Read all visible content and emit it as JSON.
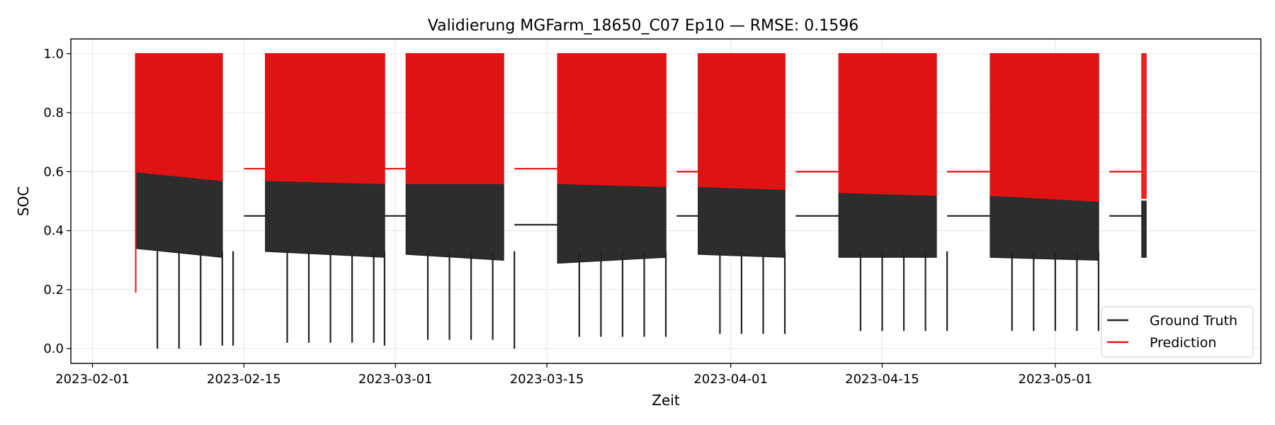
{
  "chart_data": {
    "type": "line",
    "title": "Validierung MGFarm_18650_C07 Ep10 — RMSE: 0.1596",
    "xlabel": "Zeit",
    "ylabel": "SOC",
    "xlim": [
      "2023-01-30",
      "2023-05-20"
    ],
    "ylim": [
      -0.05,
      1.05
    ],
    "x_ticks": [
      "2023-02-01",
      "2023-02-15",
      "2023-03-01",
      "2023-03-15",
      "2023-04-01",
      "2023-04-15",
      "2023-05-01"
    ],
    "y_ticks": [
      "0.0",
      "0.2",
      "0.4",
      "0.6",
      "0.8",
      "1.0"
    ],
    "grid": true,
    "legend_position": "bottom-right",
    "series": [
      {
        "name": "Ground Truth",
        "color": "#222222",
        "cycling_blocks": [
          {
            "start": "2023-02-05",
            "end": "2023-02-13",
            "top": 1.0,
            "floor_start": 0.34,
            "floor_end": 0.31
          },
          {
            "start": "2023-02-17",
            "end": "2023-02-28",
            "top": 1.0,
            "floor_start": 0.33,
            "floor_end": 0.31
          },
          {
            "start": "2023-03-02",
            "end": "2023-03-11",
            "top": 1.0,
            "floor_start": 0.32,
            "floor_end": 0.3
          },
          {
            "start": "2023-03-16",
            "end": "2023-03-26",
            "top": 1.0,
            "floor_start": 0.29,
            "floor_end": 0.31
          },
          {
            "start": "2023-03-29",
            "end": "2023-04-06",
            "top": 1.0,
            "floor_start": 0.32,
            "floor_end": 0.31
          },
          {
            "start": "2023-04-11",
            "end": "2023-04-20",
            "top": 1.0,
            "floor_start": 0.31,
            "floor_end": 0.31
          },
          {
            "start": "2023-04-25",
            "end": "2023-05-05",
            "top": 1.0,
            "floor_start": 0.31,
            "floor_end": 0.3
          },
          {
            "start": "2023-05-09",
            "end": "2023-05-09",
            "top": 0.5,
            "floor_start": 0.31,
            "floor_end": 0.31
          }
        ],
        "dips": [
          [
            "2023-02-07",
            0.0
          ],
          [
            "2023-02-09",
            0.0
          ],
          [
            "2023-02-11",
            0.01
          ],
          [
            "2023-02-13",
            0.01
          ],
          [
            "2023-02-14",
            0.01
          ],
          [
            "2023-02-19",
            0.02
          ],
          [
            "2023-02-21",
            0.02
          ],
          [
            "2023-02-23",
            0.02
          ],
          [
            "2023-02-25",
            0.02
          ],
          [
            "2023-02-27",
            0.02
          ],
          [
            "2023-02-28",
            0.01
          ],
          [
            "2023-03-04",
            0.03
          ],
          [
            "2023-03-06",
            0.03
          ],
          [
            "2023-03-08",
            0.03
          ],
          [
            "2023-03-10",
            0.03
          ],
          [
            "2023-03-12",
            0.0
          ],
          [
            "2023-03-18",
            0.04
          ],
          [
            "2023-03-20",
            0.04
          ],
          [
            "2023-03-22",
            0.04
          ],
          [
            "2023-03-24",
            0.04
          ],
          [
            "2023-03-26",
            0.04
          ],
          [
            "2023-03-31",
            0.05
          ],
          [
            "2023-04-02",
            0.05
          ],
          [
            "2023-04-04",
            0.05
          ],
          [
            "2023-04-06",
            0.05
          ],
          [
            "2023-04-13",
            0.06
          ],
          [
            "2023-04-15",
            0.06
          ],
          [
            "2023-04-17",
            0.06
          ],
          [
            "2023-04-19",
            0.06
          ],
          [
            "2023-04-21",
            0.06
          ],
          [
            "2023-04-27",
            0.06
          ],
          [
            "2023-04-29",
            0.06
          ],
          [
            "2023-05-01",
            0.06
          ],
          [
            "2023-05-03",
            0.06
          ],
          [
            "2023-05-05",
            0.06
          ]
        ],
        "rests": [
          [
            "2023-02-15",
            "2023-02-17",
            0.45
          ],
          [
            "2023-02-28",
            "2023-03-02",
            0.45
          ],
          [
            "2023-03-12",
            "2023-03-16",
            0.42
          ],
          [
            "2023-03-27",
            "2023-03-29",
            0.45
          ],
          [
            "2023-04-07",
            "2023-04-11",
            0.45
          ],
          [
            "2023-04-21",
            "2023-04-25",
            0.45
          ],
          [
            "2023-05-06",
            "2023-05-09",
            0.45
          ]
        ]
      },
      {
        "name": "Prediction",
        "color": "#ee1111",
        "cycling_blocks": [
          {
            "start": "2023-02-05",
            "end": "2023-02-13",
            "top": 1.0,
            "floor_start": 0.6,
            "floor_end": 0.57
          },
          {
            "start": "2023-02-17",
            "end": "2023-02-28",
            "top": 1.0,
            "floor_start": 0.57,
            "floor_end": 0.56
          },
          {
            "start": "2023-03-02",
            "end": "2023-03-11",
            "top": 1.0,
            "floor_start": 0.56,
            "floor_end": 0.56
          },
          {
            "start": "2023-03-16",
            "end": "2023-03-26",
            "top": 1.0,
            "floor_start": 0.56,
            "floor_end": 0.55
          },
          {
            "start": "2023-03-29",
            "end": "2023-04-06",
            "top": 1.0,
            "floor_start": 0.55,
            "floor_end": 0.54
          },
          {
            "start": "2023-04-11",
            "end": "2023-04-20",
            "top": 1.0,
            "floor_start": 0.53,
            "floor_end": 0.52
          },
          {
            "start": "2023-04-25",
            "end": "2023-05-05",
            "top": 1.0,
            "floor_start": 0.52,
            "floor_end": 0.5
          },
          {
            "start": "2023-05-09",
            "end": "2023-05-09",
            "top": 1.0,
            "floor_start": 0.51,
            "floor_end": 0.51
          }
        ],
        "initial_point": [
          "2023-02-05",
          0.19
        ],
        "rests": [
          [
            "2023-02-15",
            "2023-02-17",
            0.61
          ],
          [
            "2023-02-28",
            "2023-03-02",
            0.61
          ],
          [
            "2023-03-12",
            "2023-03-16",
            0.61
          ],
          [
            "2023-03-27",
            "2023-03-29",
            0.6
          ],
          [
            "2023-04-07",
            "2023-04-11",
            0.6
          ],
          [
            "2023-04-21",
            "2023-04-25",
            0.6
          ],
          [
            "2023-05-06",
            "2023-05-09",
            0.6
          ]
        ]
      }
    ]
  }
}
